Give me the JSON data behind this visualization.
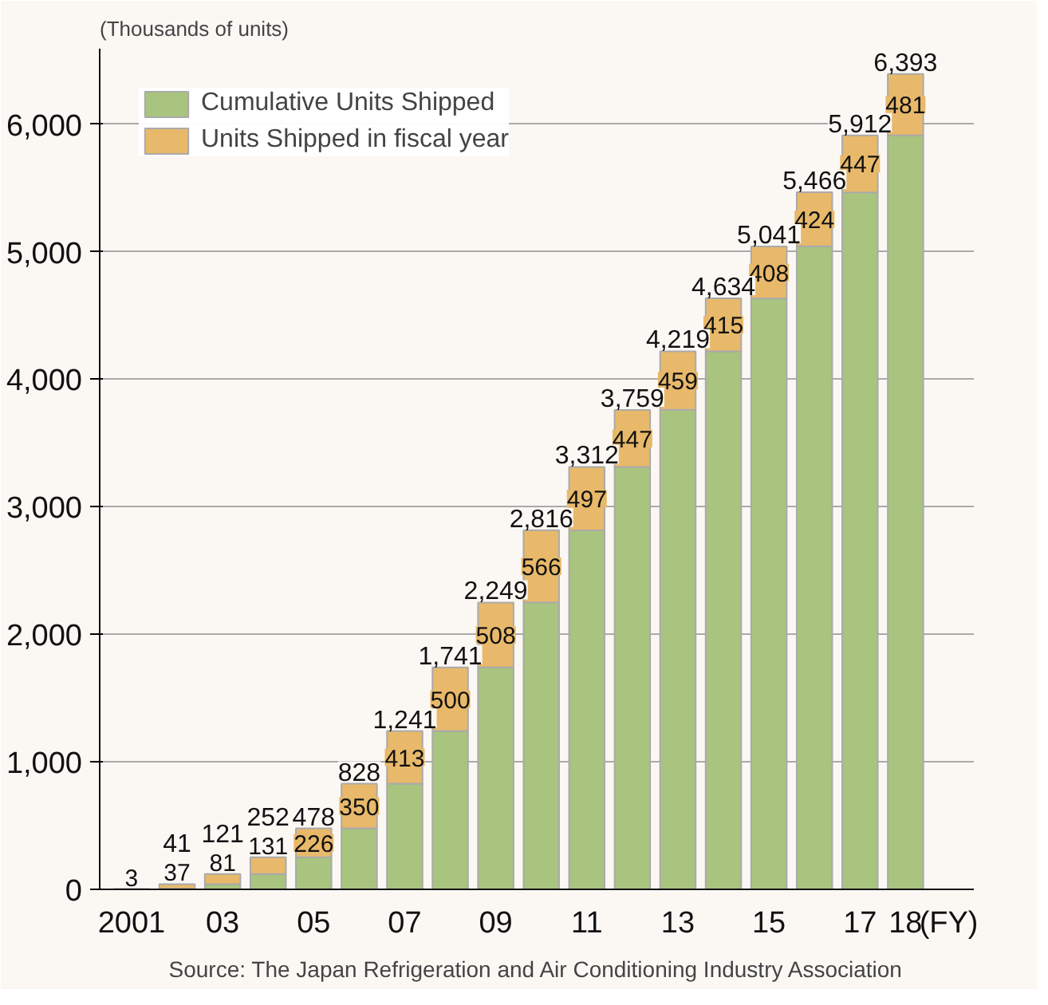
{
  "chart_data": {
    "type": "bar",
    "stacked": true,
    "ylabel": "(Thousands of units)",
    "xlabel": "(FY)",
    "categories": [
      "2001",
      null,
      "03",
      null,
      "05",
      null,
      "07",
      null,
      "09",
      null,
      "11",
      null,
      "13",
      null,
      "15",
      null,
      "17",
      "18"
    ],
    "series": [
      {
        "name": "Cumulative Units Shipped",
        "color": "#a8c47e",
        "values": [
          0,
          4,
          40,
          121,
          252,
          478,
          828,
          1241,
          1741,
          2250,
          2815,
          3312,
          3760,
          4219,
          4633,
          5042,
          5465,
          5912
        ]
      },
      {
        "name": "Units Shipped in fiscal year",
        "color": "#e8b96a",
        "values": [
          3,
          37,
          81,
          131,
          226,
          350,
          413,
          500,
          508,
          566,
          497,
          447,
          459,
          415,
          408,
          424,
          447,
          481
        ],
        "value_labels": [
          "3",
          "37",
          "81",
          "131",
          "226",
          "350",
          "413",
          "500",
          "508",
          "566",
          "497",
          "447",
          "459",
          "415",
          "408",
          "424",
          "447",
          "481"
        ]
      }
    ],
    "totals": [
      null,
      "41",
      "121",
      "252",
      "478",
      "828",
      "1,241",
      "1,741",
      "2,249",
      "2,816",
      "3,312",
      "3,759",
      "4,219",
      "4,634",
      "5,041",
      "5,466",
      "5,912",
      "6,393"
    ],
    "ylim": [
      0,
      6400
    ],
    "yticks": [
      {
        "value": 0,
        "label": "0"
      },
      {
        "value": 1000,
        "label": "1,000"
      },
      {
        "value": 2000,
        "label": "2,000"
      },
      {
        "value": 3000,
        "label": "3,000"
      },
      {
        "value": 4000,
        "label": "4,000"
      },
      {
        "value": 5000,
        "label": "5,000"
      },
      {
        "value": 6000,
        "label": "6,000"
      }
    ],
    "grid": "y",
    "legend": "top left",
    "annotations": [
      "Source: The Japan Refrigeration and Air Conditioning Industry Association"
    ]
  }
}
